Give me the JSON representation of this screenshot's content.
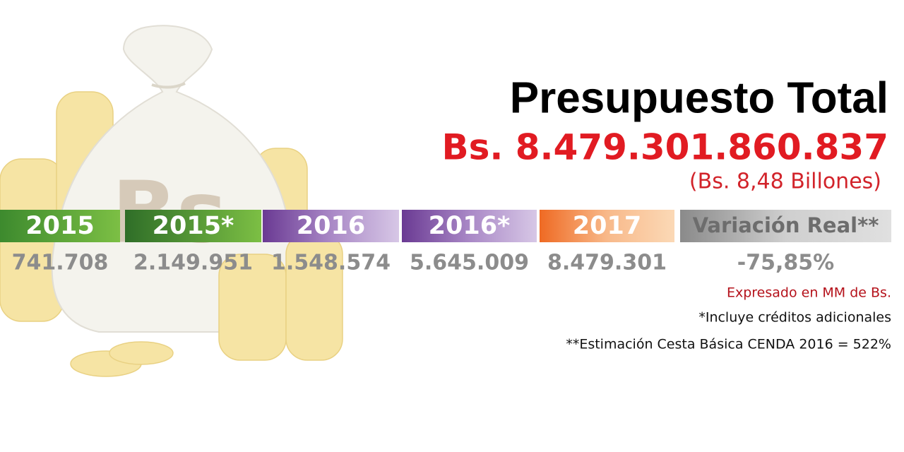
{
  "header": {
    "title": "Presupuesto Total",
    "amount": "Bs. 8.479.301.860.837",
    "amount_note": "(Bs. 8,48 Billones)"
  },
  "illustration": {
    "bag_label": "Bs"
  },
  "columns": [
    {
      "label": "2015",
      "value": "741.708"
    },
    {
      "label": "2015*",
      "value": "2.149.951"
    },
    {
      "label": "2016",
      "value": "1.548.574"
    },
    {
      "label": "2016*",
      "value": "5.645.009"
    },
    {
      "label": "2017",
      "value": "8.479.301"
    },
    {
      "label": "Variación Real**",
      "value": "-75,85%"
    }
  ],
  "notes": [
    "Expresado en MM de Bs.",
    "*Incluye créditos adicionales",
    "**Estimación Cesta Básica CENDA 2016 = 522%"
  ]
}
